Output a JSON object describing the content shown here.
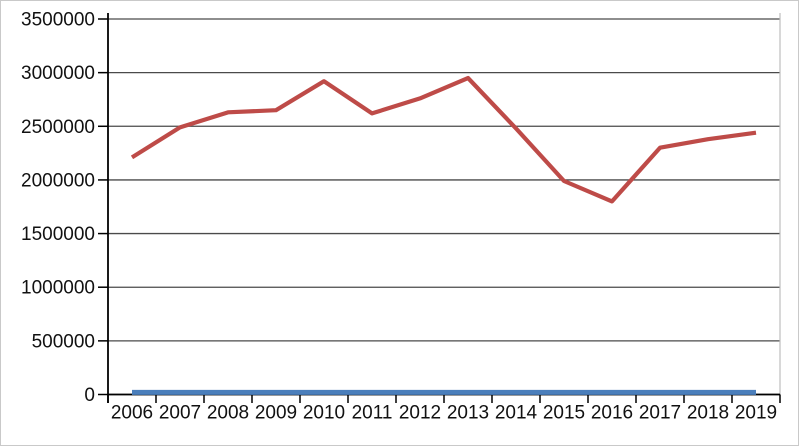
{
  "chart_data": {
    "type": "line",
    "title": "",
    "xlabel": "",
    "ylabel": "",
    "categories": [
      "2006",
      "2007",
      "2008",
      "2009",
      "2010",
      "2011",
      "2012",
      "2013",
      "2014",
      "2015",
      "2016",
      "2017",
      "2018",
      "2019"
    ],
    "series": [
      {
        "name": "red-series",
        "color": "#be4b48",
        "stroke_width": 4.2,
        "values": [
          2210000,
          2490000,
          2630000,
          2650000,
          2920000,
          2620000,
          2760000,
          2950000,
          2480000,
          1990000,
          1800000,
          2300000,
          2380000,
          2440000
        ]
      },
      {
        "name": "blue-series",
        "color": "#4a7ebb",
        "stroke_width": 5,
        "values": [
          20000,
          20000,
          20000,
          20000,
          20000,
          20000,
          20000,
          20000,
          20000,
          20000,
          20000,
          20000,
          20000,
          20000
        ]
      }
    ],
    "ylim": [
      0,
      3500000
    ],
    "ytick_step": 500000,
    "y_tick_labels": [
      "0",
      "500000",
      "1000000",
      "1500000",
      "2000000",
      "2500000",
      "3000000",
      "3500000"
    ],
    "grid": "horizontal",
    "legend": "none",
    "axis_color": "#000000",
    "gridline_color": "#4a4a4a",
    "plot_right_border_color": "#bfbfbf",
    "background": "#ffffff",
    "frame_border_color": "#c9c9c9",
    "tick_label_font_size": 19
  }
}
